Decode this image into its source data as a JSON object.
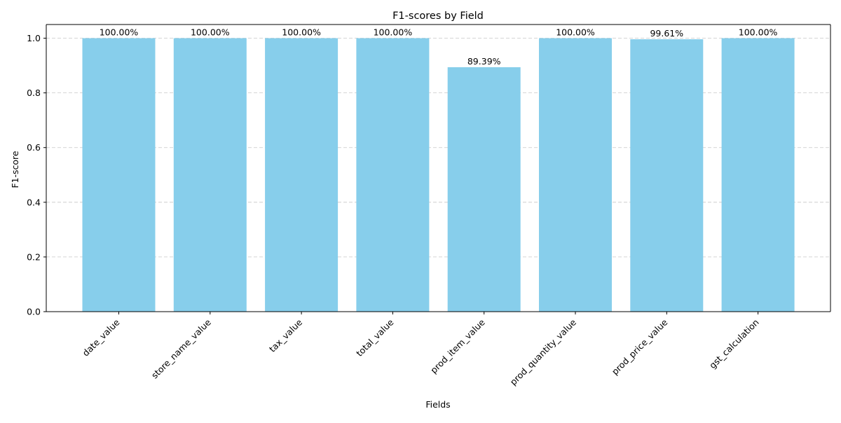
{
  "chart_data": {
    "type": "bar",
    "title": "F1-scores by Field",
    "xlabel": "Fields",
    "ylabel": "F1-score",
    "categories": [
      "date_value",
      "store_name_value",
      "tax_value",
      "total_value",
      "prod_item_value",
      "prod_quantity_value",
      "prod_price_value",
      "gst_calculation"
    ],
    "values": [
      1.0,
      1.0,
      1.0,
      1.0,
      0.8939,
      1.0,
      0.9961,
      1.0
    ],
    "data_labels": [
      "100.00%",
      "100.00%",
      "100.00%",
      "100.00%",
      "89.39%",
      "100.00%",
      "99.61%",
      "100.00%"
    ],
    "ylim": [
      0,
      1.05
    ],
    "yticks": [
      "0.0",
      "0.2",
      "0.4",
      "0.6",
      "0.8",
      "1.0"
    ],
    "ytick_values": [
      0,
      0.2,
      0.4,
      0.6,
      0.8,
      1.0
    ],
    "grid": "y-dashed",
    "colors": {
      "bar": "#87ceeb",
      "grid": "#c8c8c8",
      "axis": "#000000"
    }
  }
}
